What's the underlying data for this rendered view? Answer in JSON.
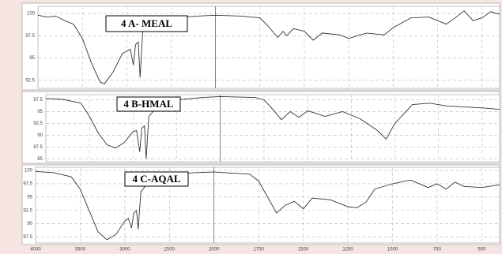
{
  "chart_data": [
    {
      "type": "line",
      "title": "4 A- MEAL",
      "color": "#333333",
      "grid": true,
      "xlim": [
        4000,
        400
      ],
      "ylim": [
        91.6,
        100.8
      ],
      "yticks": [
        100,
        97.5,
        95,
        92.5
      ],
      "x": [
        4000,
        3900,
        3800,
        3700,
        3600,
        3500,
        3400,
        3300,
        3250,
        3150,
        3050,
        2960,
        2925,
        2900,
        2870,
        2850,
        2820,
        2700,
        2500,
        2200,
        2000,
        1850,
        1750,
        1700,
        1650,
        1620,
        1600,
        1560,
        1500,
        1450,
        1400,
        1300,
        1250,
        1150,
        1050,
        1000,
        900,
        800,
        700,
        650,
        600,
        550,
        500,
        450,
        400
      ],
      "values": [
        99.8,
        99.6,
        99.7,
        99.2,
        98.8,
        97.2,
        94.5,
        92.3,
        92.1,
        93.5,
        95.5,
        96.0,
        94.2,
        96.5,
        96.8,
        92.8,
        98.0,
        99.0,
        99.5,
        99.7,
        99.8,
        99.7,
        99.5,
        98.5,
        97.3,
        98.0,
        97.5,
        98.3,
        98.0,
        97.0,
        97.8,
        97.6,
        97.2,
        97.8,
        97.6,
        98.4,
        99.5,
        99.6,
        98.8,
        99.5,
        100.3,
        99.2,
        99.5,
        100.2,
        99.9
      ]
    },
    {
      "type": "line",
      "title": "4 B-HMAL",
      "color": "#333333",
      "grid": true,
      "xlim": [
        4000,
        400
      ],
      "ylim": [
        84.4,
        98.6
      ],
      "yticks": [
        97.5,
        95,
        92.5,
        90,
        87.5,
        85
      ],
      "x": [
        4000,
        3800,
        3600,
        3500,
        3400,
        3300,
        3200,
        3100,
        3000,
        2960,
        2925,
        2900,
        2870,
        2850,
        2820,
        2700,
        2500,
        2200,
        2000,
        1800,
        1750,
        1700,
        1650,
        1600,
        1550,
        1500,
        1400,
        1300,
        1200,
        1100,
        1050,
        1000,
        900,
        800,
        700,
        600,
        500,
        400
      ],
      "values": [
        97.8,
        97.6,
        96.8,
        94.0,
        90.5,
        88.0,
        87.3,
        88.5,
        90.8,
        91.0,
        86.5,
        91.5,
        92.0,
        85.0,
        94.0,
        96.5,
        97.5,
        98.0,
        98.2,
        98.0,
        97.5,
        95.5,
        93.3,
        95.0,
        93.8,
        95.2,
        94.0,
        95.0,
        93.5,
        91.0,
        89.2,
        92.5,
        96.5,
        96.8,
        96.2,
        96.0,
        95.8,
        95.5
      ]
    },
    {
      "type": "line",
      "title": "4 C-AQAL",
      "color": "#333333",
      "grid": true,
      "xlim": [
        4000,
        400
      ],
      "ylim": [
        86.4,
        100.6
      ],
      "yticks": [
        100,
        97.5,
        95,
        92.5,
        90,
        87.5
      ],
      "xticks": [
        4000,
        3500,
        3000,
        2500,
        2000,
        1750,
        1500,
        1250,
        1000,
        750,
        500
      ],
      "x": [
        4000,
        3800,
        3600,
        3500,
        3400,
        3300,
        3200,
        3100,
        3000,
        2960,
        2925,
        2900,
        2870,
        2850,
        2820,
        2700,
        2500,
        2200,
        2000,
        1800,
        1750,
        1700,
        1650,
        1600,
        1550,
        1500,
        1450,
        1350,
        1250,
        1200,
        1150,
        1100,
        1000,
        900,
        800,
        750,
        700,
        650,
        600,
        500,
        400
      ],
      "values": [
        99.8,
        99.6,
        98.8,
        96.5,
        92.5,
        88.5,
        87.0,
        88.0,
        90.5,
        91.0,
        89.2,
        92.0,
        92.5,
        89.0,
        96.0,
        98.5,
        99.3,
        99.6,
        99.7,
        99.3,
        98.0,
        95.0,
        92.0,
        93.5,
        94.2,
        92.8,
        94.8,
        94.5,
        93.2,
        93.0,
        94.0,
        96.5,
        97.5,
        98.2,
        96.8,
        97.5,
        96.5,
        97.8,
        97.0,
        96.8,
        97.3
      ]
    }
  ]
}
